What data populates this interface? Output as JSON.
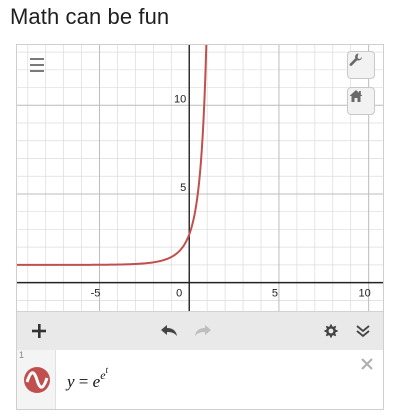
{
  "caption": "Math can be fun",
  "graph": {
    "x_range": [
      -9.6,
      10.8
    ],
    "y_range": [
      -1.6,
      13.4
    ],
    "grid_step": 1,
    "x_tick_labels": [
      {
        "value": -5,
        "text": "-5"
      },
      {
        "value": 0,
        "text": "0"
      },
      {
        "value": 5,
        "text": "5"
      },
      {
        "value": 10,
        "text": "10"
      }
    ],
    "y_tick_labels": [
      {
        "value": 5,
        "text": "5"
      },
      {
        "value": 10,
        "text": "10"
      }
    ],
    "curve_color": "#c0504d",
    "grid_color": "#dcdcdc",
    "axis_color": "#222222"
  },
  "controls": {
    "menu_icon": "hamburger-icon",
    "wrench_icon": "wrench-icon",
    "home_icon": "home-icon",
    "add_icon": "plus-icon",
    "undo_icon": "undo-icon",
    "redo_icon": "redo-icon",
    "settings_icon": "gear-icon",
    "collapse_icon": "double-chevron-down-icon"
  },
  "expression": {
    "index": "1",
    "lhs": "y",
    "equals": " = ",
    "base": "e",
    "exp_base": "e",
    "exp_exp": "t",
    "color": "#c0504d",
    "delete_icon": "close-icon"
  }
}
